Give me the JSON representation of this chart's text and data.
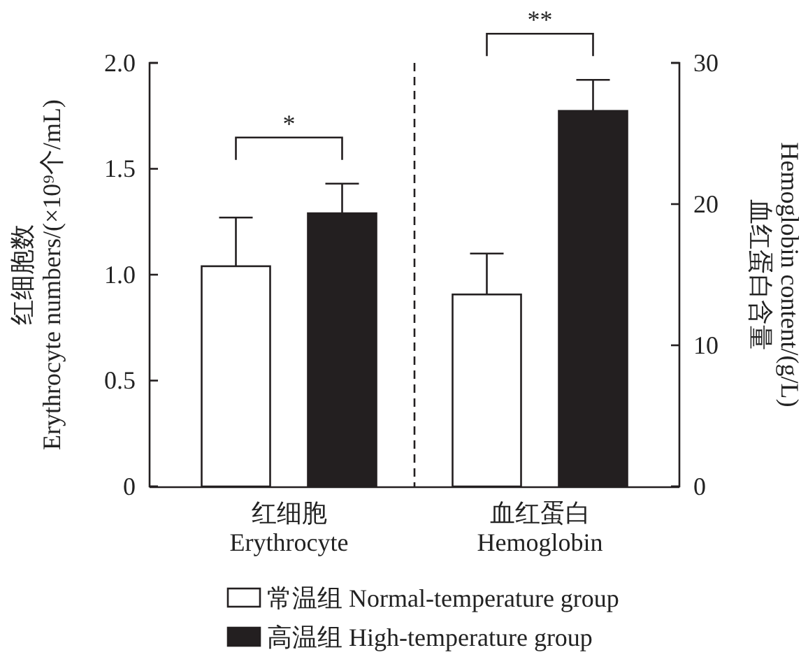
{
  "chart_data": {
    "type": "bar",
    "categories": [
      "红细胞\nErythrocyte",
      "血红蛋白\nHemoglobin"
    ],
    "ylabel": "红细胞数\nErythrocyte numbers/(×10⁹个/mL)",
    "y2label": "血红蛋白含量\nHemoglobin content/(g/L)",
    "series": [
      {
        "name": "常温组 Normal-temperature group",
        "color": "#ffffff",
        "values": [
          1.04,
          null
        ],
        "errors": [
          0.23,
          null
        ]
      },
      {
        "name": "高温组 High-temperature group",
        "color": "#231f20",
        "values": [
          1.29,
          null
        ],
        "errors": [
          0.14,
          null
        ]
      },
      {
        "color": "#ffffff",
        "values": [
          null,
          13.6
        ],
        "errors": [
          null,
          2.9
        ],
        "axis": "y2"
      },
      {
        "color": "#231f20",
        "values": [
          null,
          26.6
        ],
        "errors": [
          null,
          2.2
        ],
        "axis": "y2"
      }
    ],
    "ylim": [
      0,
      2.0
    ],
    "yticks": [
      0,
      {
        "value": 0.5,
        "label": "0.5"
      },
      {
        "value": 1,
        "label": "1.0"
      },
      {
        "value": 1.5,
        "label": "1.5"
      },
      {
        "value": 2,
        "label": "2.0"
      }
    ],
    "y2lim": [
      0,
      30
    ],
    "y2ticks": [
      0,
      10,
      20,
      30
    ],
    "annotations": [
      "*",
      "**"
    ],
    "legend": "bottom",
    "grid": false
  }
}
